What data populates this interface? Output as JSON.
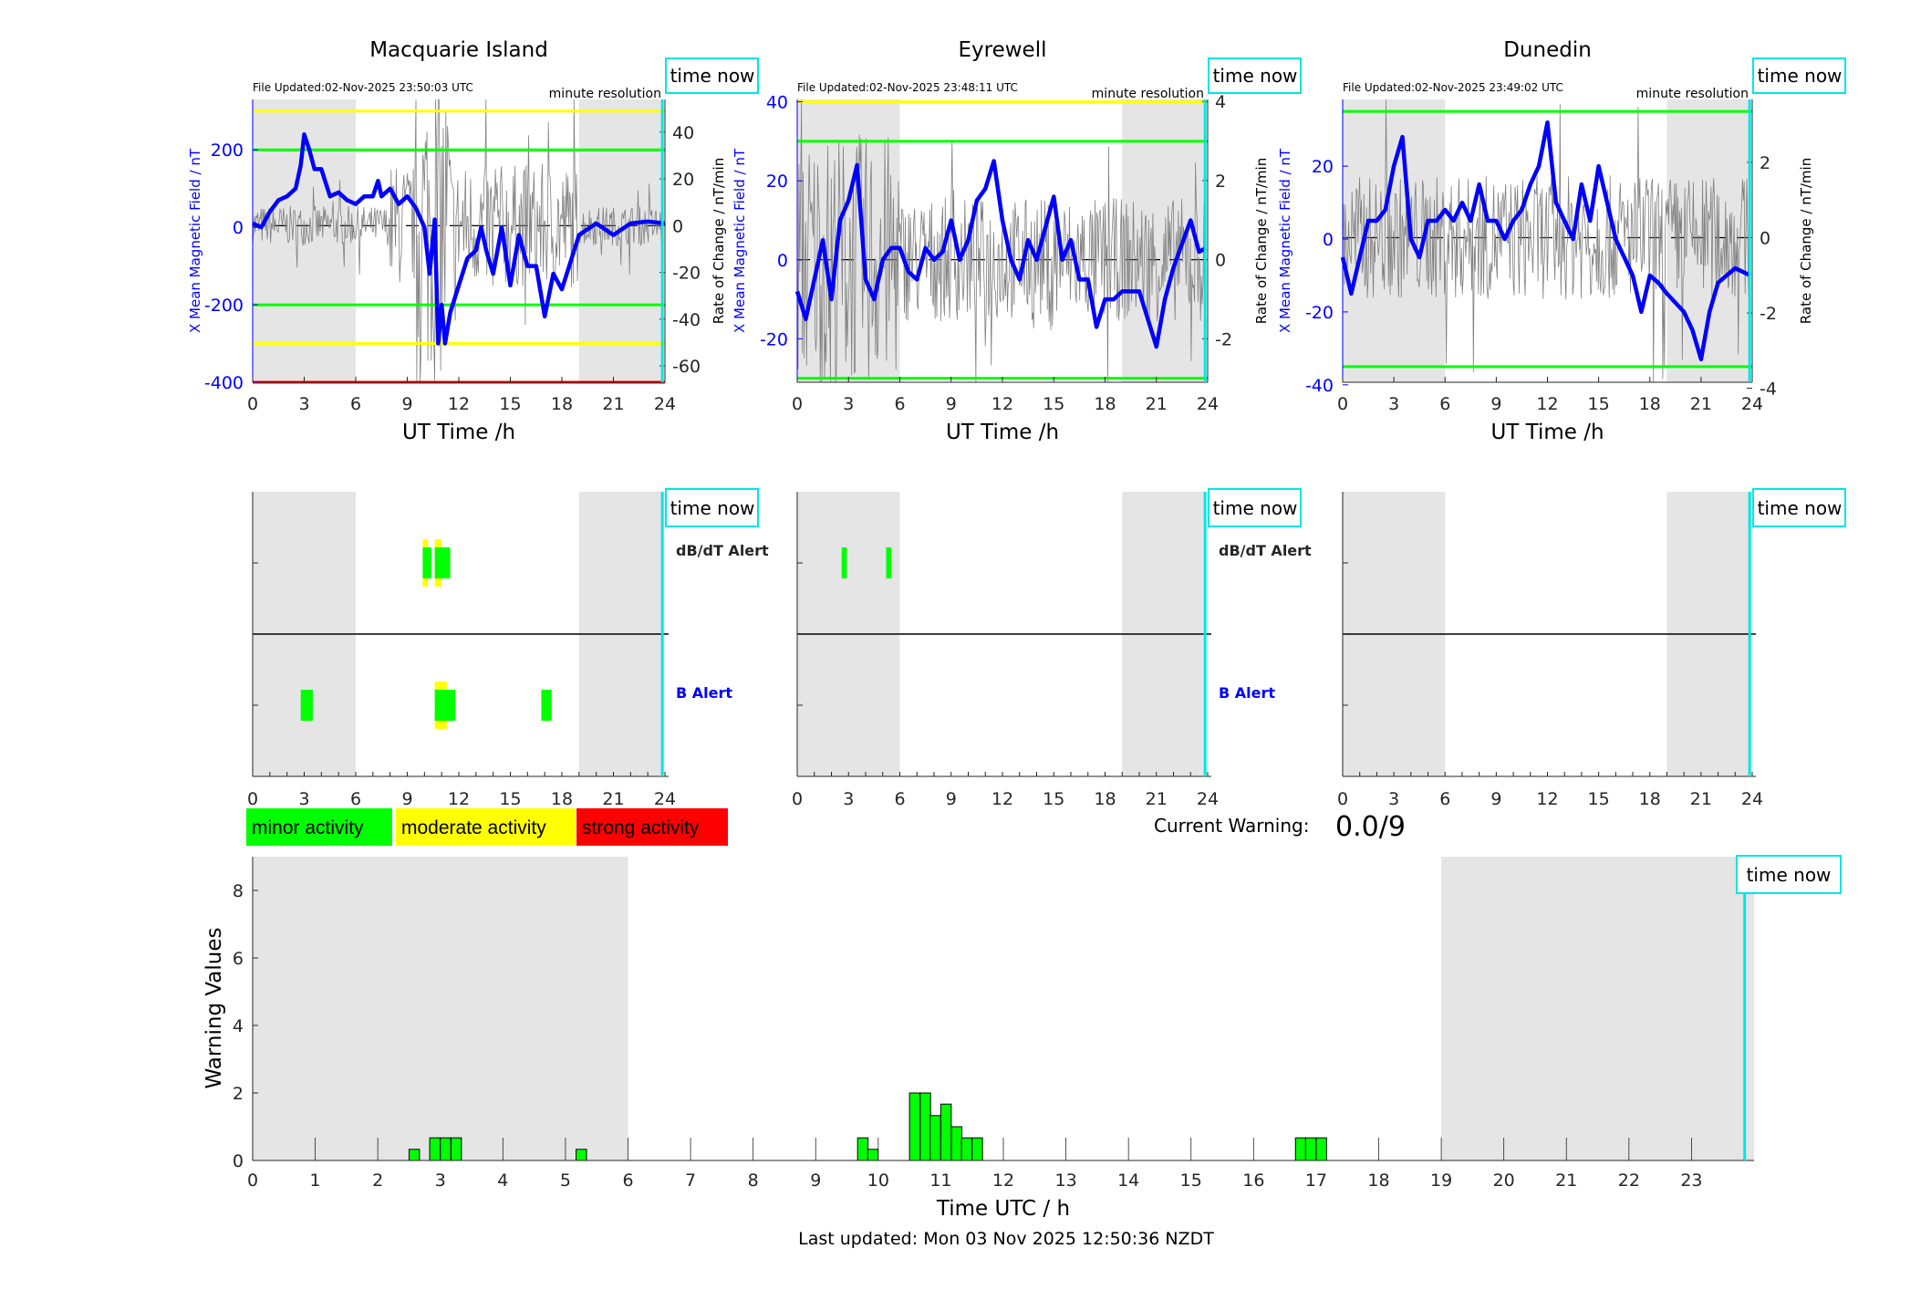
{
  "colors": {
    "field": "#0000ff",
    "rate": "#808080",
    "night": "#e5e5e5",
    "time_now": "#00e5e5",
    "minor": "#00ff00",
    "moderate": "#ffff00",
    "strong": "#ff0000"
  },
  "time_now_label": "time now",
  "stations": [
    {
      "title": "Macquarie Island",
      "file_updated": "File Updated:02-Nov-2025 23:50:03 UTC",
      "resolution": "minute resolution",
      "left_ylabel": "X Mean Magnetic Field / nT",
      "right_ylabel": "Rate of Change / nT/min",
      "xlabel": "UT Time /h",
      "ylim": [
        -400,
        330
      ],
      "yticks": [
        -400,
        -200,
        0,
        200
      ],
      "right_ylim": [
        -67,
        54
      ],
      "right_yticks": [
        -60,
        -40,
        -20,
        0,
        20,
        40
      ],
      "thresholds": [
        {
          "value": 300,
          "color": "#ffff00"
        },
        {
          "value": -300,
          "color": "#ffff00"
        },
        {
          "value": 200,
          "color": "#00ff00"
        },
        {
          "value": -200,
          "color": "#00ff00"
        },
        {
          "value": -400,
          "color": "#ff0000"
        }
      ],
      "x": [
        0,
        0.5,
        1,
        1.5,
        2,
        2.5,
        2.8,
        3,
        3.3,
        3.6,
        4,
        4.5,
        5,
        5.5,
        6,
        6.5,
        7,
        7.3,
        7.5,
        8,
        8.5,
        9,
        9.5,
        10,
        10.3,
        10.6,
        10.8,
        11,
        11.2,
        11.5,
        12,
        12.5,
        13,
        13.3,
        13.6,
        14,
        14.5,
        15,
        15.5,
        16,
        16.5,
        17,
        17.5,
        18,
        18.5,
        19,
        20,
        21,
        22,
        23,
        24
      ],
      "field": [
        10,
        0,
        40,
        70,
        80,
        100,
        160,
        240,
        200,
        150,
        150,
        80,
        90,
        70,
        60,
        80,
        80,
        120,
        80,
        100,
        60,
        80,
        50,
        0,
        -120,
        20,
        -300,
        -200,
        -300,
        -220,
        -150,
        -80,
        -60,
        0,
        -60,
        -120,
        0,
        -150,
        -20,
        -100,
        -100,
        -230,
        -120,
        -160,
        -90,
        -20,
        10,
        -20,
        10,
        15,
        10
      ],
      "alert_labels": {
        "dbdt": "dB/dT Alert",
        "b": "B Alert"
      },
      "alerts": [
        {
          "row": "dbdt",
          "start": 9.9,
          "end": 10.2,
          "level": "moderate"
        },
        {
          "row": "dbdt",
          "start": 10.6,
          "end": 11.0,
          "level": "moderate"
        },
        {
          "row": "dbdt",
          "start": 9.9,
          "end": 10.4,
          "level": "minor"
        },
        {
          "row": "dbdt",
          "start": 10.6,
          "end": 11.5,
          "level": "minor"
        },
        {
          "row": "b",
          "start": 2.8,
          "end": 3.5,
          "level": "minor"
        },
        {
          "row": "b",
          "start": 10.6,
          "end": 11.3,
          "level": "moderate"
        },
        {
          "row": "b",
          "start": 10.6,
          "end": 11.8,
          "level": "minor"
        },
        {
          "row": "b",
          "start": 16.8,
          "end": 17.4,
          "level": "minor"
        }
      ]
    },
    {
      "title": "Eyrewell",
      "file_updated": "File Updated:02-Nov-2025 23:48:11 UTC",
      "resolution": "minute resolution",
      "left_ylabel": "X Mean Magnetic Field / nT",
      "right_ylabel": "Rate of Change / nT/min",
      "xlabel": "UT Time /h",
      "ylim": [
        -31,
        40.6
      ],
      "yticks": [
        -20,
        0,
        20,
        40
      ],
      "right_ylim": [
        -3.1,
        4.05
      ],
      "right_yticks": [
        -2,
        0,
        2,
        4
      ],
      "thresholds": [
        {
          "value": 40,
          "color": "#ffff00"
        },
        {
          "value": 30,
          "color": "#00ff00"
        },
        {
          "value": -30,
          "color": "#00ff00"
        }
      ],
      "x": [
        0,
        0.5,
        1,
        1.5,
        2,
        2.5,
        3,
        3.5,
        4,
        4.5,
        5,
        5.5,
        6,
        6.5,
        7,
        7.5,
        8,
        8.5,
        9,
        9.5,
        10,
        10.5,
        11,
        11.5,
        12,
        12.5,
        13,
        13.5,
        14,
        14.5,
        15,
        15.5,
        16,
        16.5,
        17,
        17.5,
        18,
        18.5,
        19,
        20,
        21,
        21.5,
        22,
        23,
        23.5,
        23.9
      ],
      "field": [
        -8,
        -15,
        -5,
        5,
        -10,
        10,
        15,
        24,
        -5,
        -10,
        0,
        3,
        3,
        -3,
        -5,
        3,
        0,
        2,
        10,
        0,
        5,
        15,
        18,
        25,
        10,
        0,
        -5,
        5,
        0,
        8,
        16,
        0,
        5,
        -5,
        -5,
        -17,
        -10,
        -10,
        -8,
        -8,
        -22,
        -10,
        -2,
        10,
        2,
        3
      ],
      "alert_labels": {
        "dbdt": "dB/dT Alert",
        "b": "B Alert"
      },
      "alerts": [
        {
          "row": "dbdt",
          "start": 2.6,
          "end": 2.9,
          "level": "minor"
        },
        {
          "row": "dbdt",
          "start": 5.2,
          "end": 5.5,
          "level": "minor"
        }
      ]
    },
    {
      "title": "Dunedin",
      "file_updated": "File Updated:02-Nov-2025 23:49:02 UTC",
      "resolution": "minute resolution",
      "left_ylabel": "X Mean Magnetic Field / nT",
      "right_ylabel": "Rate of Change / nT/min",
      "xlabel": "UT Time /h",
      "ylim": [
        -39.3,
        38.3
      ],
      "yticks": [
        -40,
        -20,
        0,
        20
      ],
      "right_ylim": [
        -3.84,
        3.67
      ],
      "right_yticks": [
        -4,
        -2,
        0,
        2
      ],
      "thresholds": [
        {
          "value": 35,
          "color": "#00ff00"
        },
        {
          "value": -35,
          "color": "#00ff00"
        }
      ],
      "x": [
        0,
        0.5,
        1,
        1.5,
        2,
        2.5,
        3,
        3.5,
        4,
        4.5,
        5,
        5.5,
        6,
        6.5,
        7,
        7.5,
        8,
        8.5,
        9,
        9.5,
        10,
        10.5,
        11,
        11.5,
        12,
        12.5,
        13,
        13.5,
        14,
        14.5,
        15,
        15.5,
        16,
        16.5,
        17,
        17.5,
        18,
        18.5,
        19,
        20,
        20.5,
        21,
        21.5,
        22,
        23,
        23.9
      ],
      "field": [
        -5,
        -15,
        -5,
        5,
        5,
        8,
        20,
        28,
        0,
        -5,
        5,
        5,
        8,
        5,
        10,
        5,
        15,
        5,
        5,
        0,
        5,
        8,
        15,
        20,
        32,
        10,
        5,
        0,
        15,
        5,
        20,
        10,
        0,
        -5,
        -10,
        -20,
        -10,
        -12,
        -15,
        -20,
        -25,
        -33,
        -20,
        -12,
        -8,
        -10
      ],
      "alert_labels": {
        "dbdt": "",
        "b": ""
      },
      "alerts": []
    }
  ],
  "legend": [
    {
      "label": "minor activity",
      "color": "#00ff00"
    },
    {
      "label": "moderate activity",
      "color": "#ffff00"
    },
    {
      "label": "strong activity",
      "color": "#ff0000"
    }
  ],
  "current_warning": {
    "label": "Current Warning:",
    "value": "0.0/9"
  },
  "chart_data": {
    "type": "bar",
    "xlabel": "Time UTC / h",
    "ylabel": "Warning Values",
    "xlim": [
      0,
      24
    ],
    "ylim": [
      0,
      9
    ],
    "xticks": [
      0,
      1,
      2,
      3,
      4,
      5,
      6,
      7,
      8,
      9,
      10,
      11,
      12,
      13,
      14,
      15,
      16,
      17,
      18,
      19,
      20,
      21,
      22,
      23
    ],
    "yticks": [
      0,
      2,
      4,
      6,
      8
    ],
    "bin_width_h": 0.1667,
    "x": [
      2.5,
      2.83,
      3.0,
      3.17,
      5.17,
      9.67,
      9.83,
      10.5,
      10.67,
      10.83,
      11.0,
      11.17,
      11.33,
      11.5
    ],
    "values": [
      0.33,
      0.67,
      0.67,
      0.67,
      0.33,
      0.67,
      0.33,
      2,
      2,
      1.33,
      1.67,
      1.0,
      0.67,
      0.67
    ],
    "extra_x": [
      16.67,
      16.83,
      17.0
    ],
    "extra_values": [
      0.67,
      0.67,
      0.67
    ],
    "night_bands": [
      [
        0,
        6
      ],
      [
        19,
        24
      ]
    ],
    "time_now": 23.85
  },
  "footer": "Last updated: Mon 03 Nov 2025 12:50:36 NZDT"
}
